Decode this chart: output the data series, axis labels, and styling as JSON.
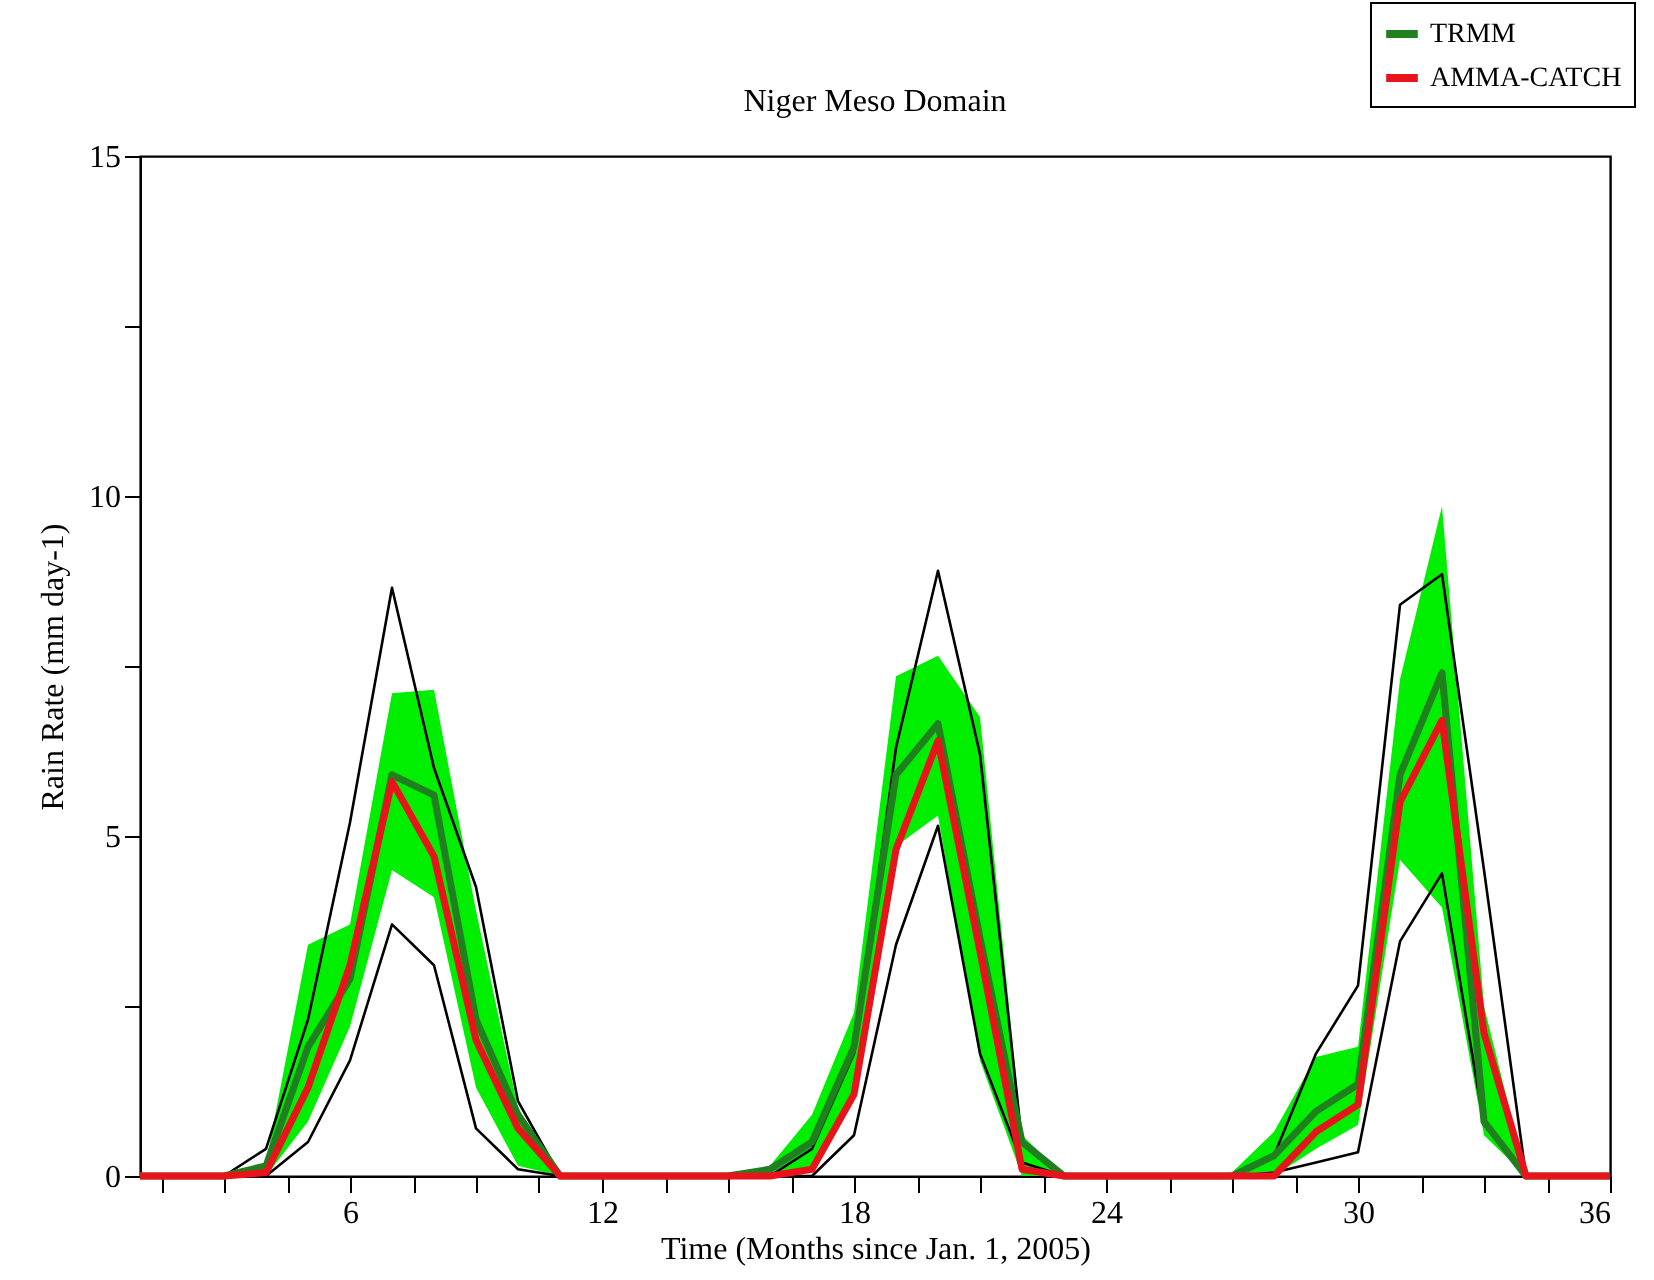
{
  "chart_data": {
    "type": "line",
    "title": "Niger Meso Domain",
    "xlabel": "Time (Months since Jan. 1, 2005)",
    "ylabel": "Rain Rate (mm day-1)",
    "x": [
      1,
      2,
      3,
      4,
      5,
      6,
      7,
      8,
      9,
      10,
      11,
      12,
      13,
      14,
      15,
      16,
      17,
      18,
      19,
      20,
      21,
      22,
      23,
      24,
      25,
      26,
      27,
      28,
      29,
      30,
      31,
      32,
      33,
      34,
      35,
      36
    ],
    "series": [
      {
        "color": "#000000",
        "values": [
          0,
          0,
          0,
          0.4,
          2.3,
          5.2,
          8.65,
          6.0,
          4.25,
          1.1,
          0,
          0,
          0,
          0,
          0,
          0,
          0.4,
          1.8,
          6.3,
          8.9,
          6.2,
          0.5,
          0,
          0,
          0,
          0,
          0,
          0.3,
          1.8,
          2.8,
          8.4,
          8.85,
          4.5,
          0,
          0,
          0
        ]
      },
      {
        "color": "#000000",
        "values": [
          0,
          0,
          0,
          0,
          0.5,
          1.7,
          3.7,
          3.1,
          0.7,
          0.1,
          0,
          0,
          0,
          0,
          0,
          0,
          0,
          0.6,
          3.4,
          5.15,
          1.8,
          0.2,
          0,
          0,
          0,
          0,
          0,
          0.05,
          0.2,
          0.35,
          3.45,
          4.45,
          0.75,
          0,
          0,
          0
        ]
      },
      {
        "name": "TRMM",
        "color": "#208020",
        "values": [
          0,
          0,
          0,
          0.15,
          1.9,
          2.9,
          5.9,
          5.6,
          2.3,
          0.9,
          0,
          0,
          0,
          0,
          0,
          0.1,
          0.5,
          1.9,
          5.9,
          6.65,
          3.5,
          0.5,
          0,
          0,
          0,
          0,
          0,
          0.3,
          0.95,
          1.35,
          5.9,
          7.4,
          0.8,
          0,
          0,
          0
        ],
        "lower": [
          0,
          0,
          0,
          0,
          0.8,
          2.2,
          4.5,
          4.1,
          1.3,
          0.15,
          0,
          0,
          0,
          0,
          0,
          0,
          0.1,
          1.1,
          4.85,
          5.3,
          1.7,
          0,
          0,
          0,
          0,
          0,
          0,
          0,
          0.4,
          0.75,
          4.65,
          3.95,
          0.6,
          0,
          0,
          0
        ],
        "upper": [
          0,
          0,
          0,
          0.2,
          3.4,
          3.7,
          7.1,
          7.15,
          3.9,
          1.0,
          0,
          0,
          0,
          0,
          0,
          0.15,
          0.9,
          2.4,
          7.35,
          7.65,
          6.75,
          0.6,
          0,
          0,
          0,
          0,
          0.05,
          0.65,
          1.75,
          1.9,
          7.3,
          9.85,
          2.5,
          0,
          0,
          0
        ]
      },
      {
        "name": "AMMA-CATCH",
        "color": "#e8141c",
        "values": [
          0,
          0,
          0,
          0.05,
          1.3,
          3.1,
          5.8,
          4.7,
          2.0,
          0.7,
          0,
          0,
          0,
          0,
          0,
          0,
          0.1,
          1.2,
          4.8,
          6.4,
          3.3,
          0.1,
          0,
          0,
          0,
          0,
          0,
          0,
          0.65,
          1.05,
          5.5,
          6.7,
          2.1,
          0,
          0,
          0
        ]
      }
    ],
    "xlim": [
      1,
      36
    ],
    "xticks": [
      {
        "value": 1.5,
        "label": null
      },
      {
        "value": 3,
        "label": null
      },
      {
        "value": 4.5,
        "label": null
      },
      6,
      {
        "value": 7.5,
        "label": null
      },
      {
        "value": 9,
        "label": null
      },
      {
        "value": 10.5,
        "label": null
      },
      12,
      {
        "value": 13.5,
        "label": null
      },
      {
        "value": 15,
        "label": null
      },
      {
        "value": 16.5,
        "label": null
      },
      18,
      {
        "value": 19.5,
        "label": null
      },
      {
        "value": 21,
        "label": null
      },
      {
        "value": 22.5,
        "label": null
      },
      24,
      {
        "value": 25.5,
        "label": null
      },
      {
        "value": 27,
        "label": null
      },
      {
        "value": 28.5,
        "label": null
      },
      30,
      {
        "value": 31.5,
        "label": null
      },
      {
        "value": 33,
        "label": null
      },
      {
        "value": 34.5,
        "label": null
      },
      36
    ],
    "ylim": [
      0,
      15
    ],
    "yticks": [
      0,
      {
        "value": 2.5,
        "label": null
      },
      5,
      {
        "value": 7.5,
        "label": null
      },
      10,
      {
        "value": 12.5,
        "label": null
      },
      15
    ],
    "grid": false,
    "legend": "top right",
    "line_style": "solid",
    "marker": "none"
  }
}
